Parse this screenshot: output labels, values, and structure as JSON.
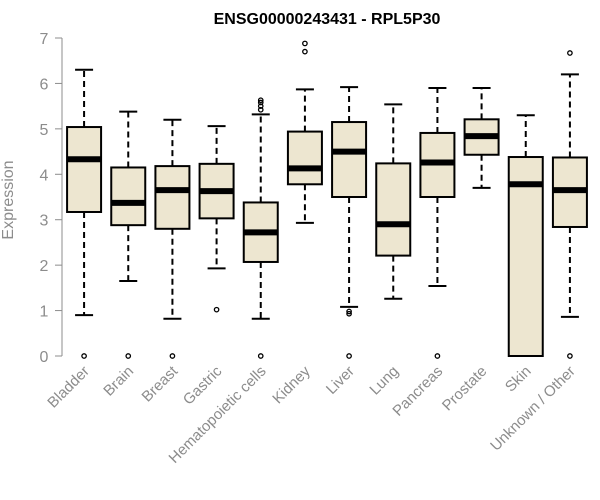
{
  "chart_data": {
    "type": "box",
    "title": "ENSG00000243431 - RPL5P30",
    "ylabel": "Expression",
    "xlabel": "",
    "ylim": [
      0,
      7
    ],
    "yticks": [
      0,
      1,
      2,
      3,
      4,
      5,
      6,
      7
    ],
    "box_fill": "#ede6d0",
    "categories": [
      "Bladder",
      "Brain",
      "Breast",
      "Gastric",
      "Hematopoietic cells",
      "Kidney",
      "Liver",
      "Lung",
      "Pancreas",
      "Prostate",
      "Skin",
      "Unknown / Other"
    ],
    "boxes": [
      {
        "category": "Bladder",
        "whisker_low": 0.9,
        "q1": 3.17,
        "median": 4.33,
        "q3": 5.04,
        "whisker_high": 6.3,
        "outliers": [
          0
        ]
      },
      {
        "category": "Brain",
        "whisker_low": 1.65,
        "q1": 2.88,
        "median": 3.37,
        "q3": 4.15,
        "whisker_high": 5.38,
        "outliers": [
          0
        ]
      },
      {
        "category": "Breast",
        "whisker_low": 0.82,
        "q1": 2.8,
        "median": 3.65,
        "q3": 4.18,
        "whisker_high": 5.2,
        "outliers": [
          0
        ]
      },
      {
        "category": "Gastric",
        "whisker_low": 1.93,
        "q1": 3.03,
        "median": 3.63,
        "q3": 4.23,
        "whisker_high": 5.06,
        "outliers": [
          1.02
        ]
      },
      {
        "category": "Hematopoietic cells",
        "whisker_low": 0.82,
        "q1": 2.07,
        "median": 2.72,
        "q3": 3.38,
        "whisker_high": 5.32,
        "outliers": [
          0,
          5.42,
          5.5,
          5.58,
          5.63
        ]
      },
      {
        "category": "Kidney",
        "whisker_low": 2.93,
        "q1": 3.78,
        "median": 4.13,
        "q3": 4.94,
        "whisker_high": 5.87,
        "outliers": [
          6.7,
          6.88
        ]
      },
      {
        "category": "Liver",
        "whisker_low": 1.08,
        "q1": 3.5,
        "median": 4.5,
        "q3": 5.15,
        "whisker_high": 5.92,
        "outliers": [
          0,
          0.93,
          0.98
        ]
      },
      {
        "category": "Lung",
        "whisker_low": 1.26,
        "q1": 2.21,
        "median": 2.9,
        "q3": 4.24,
        "whisker_high": 5.54,
        "outliers": []
      },
      {
        "category": "Pancreas",
        "whisker_low": 1.54,
        "q1": 3.5,
        "median": 4.26,
        "q3": 4.91,
        "whisker_high": 5.9,
        "outliers": [
          0
        ]
      },
      {
        "category": "Prostate",
        "whisker_low": 3.7,
        "q1": 4.43,
        "median": 4.84,
        "q3": 5.21,
        "whisker_high": 5.9,
        "outliers": []
      },
      {
        "category": "Skin",
        "whisker_low": 0,
        "q1": 0,
        "median": 3.78,
        "q3": 4.38,
        "whisker_high": 5.3,
        "outliers": []
      },
      {
        "category": "Unknown / Other",
        "whisker_low": 0.86,
        "q1": 2.84,
        "median": 3.65,
        "q3": 4.37,
        "whisker_high": 6.2,
        "outliers": [
          0,
          6.67
        ]
      }
    ]
  }
}
